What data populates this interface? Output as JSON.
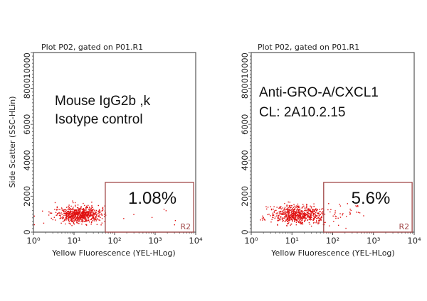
{
  "chart_data": [
    {
      "type": "scatter",
      "title": "Plot P02, gated on P01.R1",
      "xlabel": "Yellow Fluorescence (YEL-HLog)",
      "ylabel": "Side Scatter (SSC-HLin)",
      "xscale": "log",
      "xlim": [
        1,
        10000
      ],
      "ylim": [
        0,
        10000
      ],
      "xticks": [
        "10⁰",
        "10¹",
        "10²",
        "10³",
        "10⁴"
      ],
      "yticks": [
        "0",
        "2000",
        "4000",
        "6000",
        "8000",
        "10000"
      ],
      "annotation": [
        "Mouse IgG2b ,k",
        "Isotype control"
      ],
      "gate": {
        "name": "R2",
        "x_range": [
          59,
          8900
        ],
        "y_range": [
          0,
          2770
        ],
        "percent": "1.08%"
      },
      "population": {
        "x_center_log10": 1.1,
        "x_spread_log10": 0.28,
        "y_center": 1000,
        "y_spread": 230,
        "n_events": 700,
        "positive_fraction": 0.0108
      },
      "point_color": "#e01010"
    },
    {
      "type": "scatter",
      "title": "Plot P02, gated on P01.R1",
      "xlabel": "Yellow Fluorescence (YEL-HLog)",
      "ylabel": "Side Scatter (SSC-HLin)",
      "xscale": "log",
      "xlim": [
        1,
        10000
      ],
      "ylim": [
        0,
        10000
      ],
      "xticks": [
        "10⁰",
        "10¹",
        "10²",
        "10³",
        "10⁴"
      ],
      "yticks": [
        "0",
        "2000",
        "4000",
        "6000",
        "8000",
        "10000"
      ],
      "annotation": [
        "Anti-GRO-A/CXCL1",
        "CL: 2A10.2.15"
      ],
      "gate": {
        "name": "R2",
        "x_range": [
          60,
          8900
        ],
        "y_range": [
          0,
          2770
        ],
        "percent": "5.6%"
      },
      "population": {
        "x_center_log10": 1.15,
        "x_spread_log10": 0.32,
        "y_center": 1000,
        "y_spread": 260,
        "n_events": 700,
        "positive_fraction": 0.056
      },
      "point_color": "#e01010"
    }
  ]
}
